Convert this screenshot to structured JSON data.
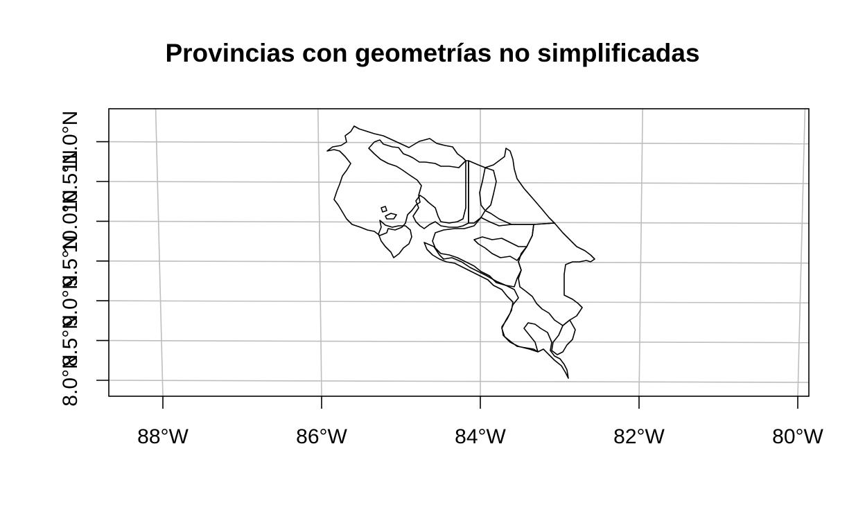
{
  "title": "Provincias con geometrías no simplificadas",
  "map": {
    "region": "Costa Rica",
    "features": "provincias",
    "lon_range": [
      -88.7,
      -79.85
    ],
    "lat_range": [
      7.8,
      11.4
    ],
    "x_ticks": [
      {
        "lon": -88,
        "label": "88°W"
      },
      {
        "lon": -86,
        "label": "86°W"
      },
      {
        "lon": -84,
        "label": "84°W"
      },
      {
        "lon": -82,
        "label": "82°W"
      },
      {
        "lon": -80,
        "label": "80°W"
      }
    ],
    "y_ticks": [
      {
        "lat": 8.0,
        "label": "8.0°N"
      },
      {
        "lat": 8.5,
        "label": "8.5°N"
      },
      {
        "lat": 9.0,
        "label": "9.0°N"
      },
      {
        "lat": 9.5,
        "label": "9.5°N"
      },
      {
        "lat": 10.0,
        "label": "10.0°N"
      },
      {
        "lat": 10.5,
        "label": "10.5°N"
      },
      {
        "lat": 11.0,
        "label": "11.0°N"
      }
    ],
    "grid": true,
    "colors": {
      "grid": "#bebebe",
      "border": "#000000"
    }
  }
}
